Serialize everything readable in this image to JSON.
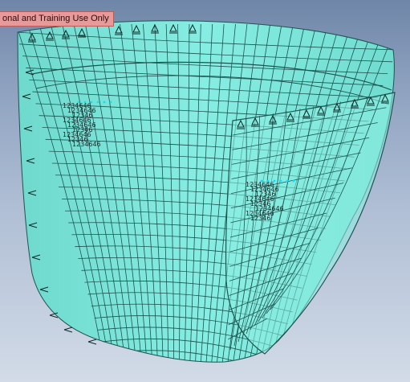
{
  "viewport": {
    "banner_text": "onal and Training Use Only",
    "model_color": "#7fe8dc",
    "inner_color": "#8ef0e4",
    "mesh_color": "#1d5450",
    "background_top": "#6f86a8",
    "background_bottom": "#d2dbe7"
  },
  "node_label_groups": [
    {
      "name": "left-node-label-cluster",
      "labels": [
        "1234646",
        "1234646",
        "12346",
        "1234646",
        "1234646",
        "12346",
        "1234646",
        "12346",
        "1234646"
      ]
    },
    {
      "name": "right-node-label-cluster",
      "labels": [
        "1234646",
        "1234646",
        "12346",
        "1234646",
        "12346",
        "1234646",
        "1234646",
        "12346"
      ]
    }
  ]
}
